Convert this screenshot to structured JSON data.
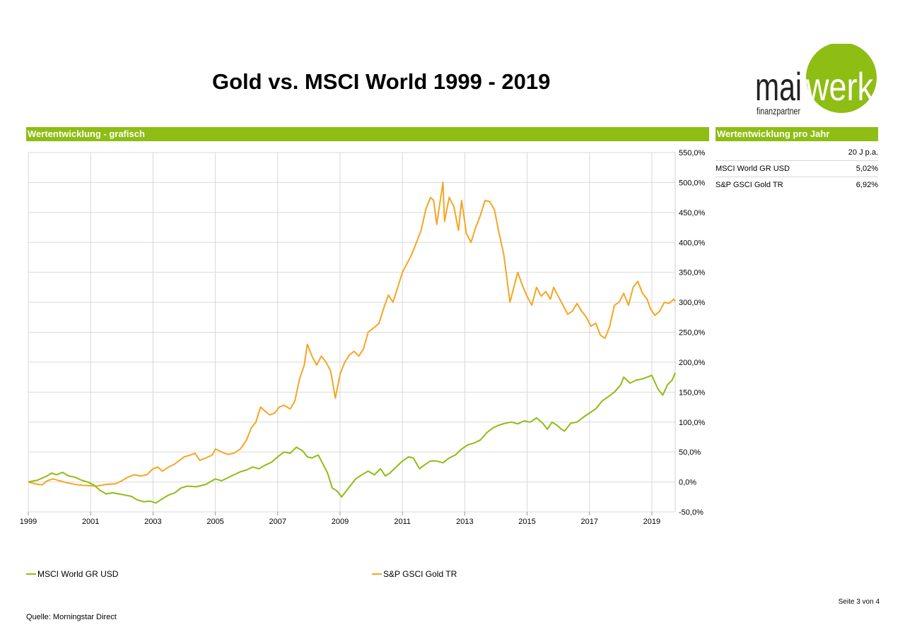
{
  "page": {
    "title": "Gold vs. MSCI World 1999 - 2019",
    "page_number": "Seite 3 von 4",
    "source": "Quelle: Morningstar Direct"
  },
  "logo": {
    "text_left": "mai",
    "text_right": "werk",
    "subtitle": "finanzpartner",
    "color_green": "#8ebd14"
  },
  "colors": {
    "accent_green": "#8ebd14",
    "msci": "#8ebd14",
    "gold": "#f5a623"
  },
  "sections": {
    "chart_header": "Wertentwicklung - grafisch",
    "table_header": "Wertentwicklung pro Jahr"
  },
  "performance_table": {
    "column_header": "20 J p.a.",
    "rows": [
      {
        "name": "MSCI World GR USD",
        "value": "5,02%"
      },
      {
        "name": "S&P GSCI Gold TR",
        "value": "6,92%"
      }
    ]
  },
  "chart_data": {
    "type": "line",
    "title": "",
    "xlabel": "",
    "ylabel": "",
    "x_range": [
      1999.0,
      2019.75
    ],
    "y_range": [
      -50,
      550
    ],
    "y_ticks": [
      550,
      500,
      450,
      400,
      350,
      300,
      250,
      200,
      150,
      100,
      50,
      0,
      -50
    ],
    "y_tick_labels": [
      "550,0%",
      "500,0%",
      "450,0%",
      "400,0%",
      "350,0%",
      "300,0%",
      "250,0%",
      "200,0%",
      "150,0%",
      "100,0%",
      "50,0%",
      "0,0%",
      "-50,0%"
    ],
    "x_ticks": [
      1999,
      2001,
      2003,
      2005,
      2007,
      2009,
      2011,
      2013,
      2015,
      2017,
      2019
    ],
    "x_tick_labels": [
      "1999",
      "2001",
      "2003",
      "2005",
      "2007",
      "2009",
      "2011",
      "2013",
      "2015",
      "2017",
      "2019"
    ],
    "grid": true,
    "legend_position": "bottom",
    "series": [
      {
        "name": "MSCI World GR USD",
        "color": "#8ebd14",
        "points": [
          [
            1999.0,
            0
          ],
          [
            1999.3,
            3
          ],
          [
            1999.6,
            10
          ],
          [
            1999.75,
            15
          ],
          [
            1999.9,
            12
          ],
          [
            2000.1,
            16
          ],
          [
            2000.3,
            10
          ],
          [
            2000.5,
            8
          ],
          [
            2000.7,
            3
          ],
          [
            2000.9,
            0
          ],
          [
            2001.1,
            -5
          ],
          [
            2001.3,
            -14
          ],
          [
            2001.5,
            -20
          ],
          [
            2001.7,
            -18
          ],
          [
            2001.9,
            -20
          ],
          [
            2002.1,
            -22
          ],
          [
            2002.3,
            -24
          ],
          [
            2002.5,
            -30
          ],
          [
            2002.7,
            -33
          ],
          [
            2002.9,
            -32
          ],
          [
            2003.1,
            -35
          ],
          [
            2003.3,
            -28
          ],
          [
            2003.5,
            -22
          ],
          [
            2003.7,
            -18
          ],
          [
            2003.9,
            -10
          ],
          [
            2004.1,
            -7
          ],
          [
            2004.4,
            -8
          ],
          [
            2004.7,
            -4
          ],
          [
            2005.0,
            5
          ],
          [
            2005.2,
            2
          ],
          [
            2005.4,
            7
          ],
          [
            2005.6,
            12
          ],
          [
            2005.8,
            17
          ],
          [
            2006.0,
            20
          ],
          [
            2006.2,
            25
          ],
          [
            2006.4,
            22
          ],
          [
            2006.6,
            28
          ],
          [
            2006.8,
            33
          ],
          [
            2007.0,
            42
          ],
          [
            2007.2,
            50
          ],
          [
            2007.4,
            48
          ],
          [
            2007.6,
            58
          ],
          [
            2007.8,
            52
          ],
          [
            2007.95,
            42
          ],
          [
            2008.1,
            40
          ],
          [
            2008.3,
            45
          ],
          [
            2008.45,
            30
          ],
          [
            2008.6,
            15
          ],
          [
            2008.75,
            -10
          ],
          [
            2008.9,
            -15
          ],
          [
            2009.05,
            -25
          ],
          [
            2009.2,
            -15
          ],
          [
            2009.35,
            -5
          ],
          [
            2009.5,
            5
          ],
          [
            2009.7,
            12
          ],
          [
            2009.9,
            18
          ],
          [
            2010.1,
            12
          ],
          [
            2010.3,
            22
          ],
          [
            2010.45,
            10
          ],
          [
            2010.6,
            15
          ],
          [
            2010.8,
            25
          ],
          [
            2011.0,
            35
          ],
          [
            2011.2,
            42
          ],
          [
            2011.35,
            40
          ],
          [
            2011.55,
            22
          ],
          [
            2011.7,
            28
          ],
          [
            2011.9,
            35
          ],
          [
            2012.1,
            35
          ],
          [
            2012.3,
            32
          ],
          [
            2012.5,
            40
          ],
          [
            2012.7,
            45
          ],
          [
            2012.9,
            55
          ],
          [
            2013.1,
            62
          ],
          [
            2013.3,
            65
          ],
          [
            2013.5,
            70
          ],
          [
            2013.7,
            82
          ],
          [
            2013.9,
            90
          ],
          [
            2014.1,
            95
          ],
          [
            2014.3,
            98
          ],
          [
            2014.5,
            100
          ],
          [
            2014.7,
            97
          ],
          [
            2014.9,
            102
          ],
          [
            2015.1,
            100
          ],
          [
            2015.3,
            107
          ],
          [
            2015.5,
            98
          ],
          [
            2015.65,
            88
          ],
          [
            2015.8,
            100
          ],
          [
            2015.95,
            95
          ],
          [
            2016.1,
            88
          ],
          [
            2016.2,
            85
          ],
          [
            2016.4,
            98
          ],
          [
            2016.6,
            100
          ],
          [
            2016.8,
            108
          ],
          [
            2017.0,
            115
          ],
          [
            2017.2,
            122
          ],
          [
            2017.4,
            135
          ],
          [
            2017.6,
            142
          ],
          [
            2017.8,
            150
          ],
          [
            2018.0,
            162
          ],
          [
            2018.1,
            175
          ],
          [
            2018.3,
            165
          ],
          [
            2018.5,
            170
          ],
          [
            2018.7,
            172
          ],
          [
            2018.9,
            176
          ],
          [
            2019.0,
            178
          ],
          [
            2019.2,
            155
          ],
          [
            2019.35,
            145
          ],
          [
            2019.5,
            162
          ],
          [
            2019.65,
            170
          ],
          [
            2019.75,
            182
          ]
        ]
      },
      {
        "name": "S&P GSCI Gold TR",
        "color": "#f5a623",
        "points": [
          [
            1999.0,
            0
          ],
          [
            1999.2,
            -3
          ],
          [
            1999.45,
            -5
          ],
          [
            1999.6,
            2
          ],
          [
            1999.8,
            5
          ],
          [
            2000.0,
            2
          ],
          [
            2000.3,
            -2
          ],
          [
            2000.6,
            -5
          ],
          [
            2000.9,
            -6
          ],
          [
            2001.2,
            -7
          ],
          [
            2001.5,
            -4
          ],
          [
            2001.8,
            -3
          ],
          [
            2002.0,
            2
          ],
          [
            2002.2,
            8
          ],
          [
            2002.4,
            12
          ],
          [
            2002.6,
            10
          ],
          [
            2002.8,
            12
          ],
          [
            2003.0,
            22
          ],
          [
            2003.15,
            25
          ],
          [
            2003.3,
            18
          ],
          [
            2003.5,
            25
          ],
          [
            2003.7,
            30
          ],
          [
            2003.9,
            38
          ],
          [
            2004.0,
            42
          ],
          [
            2004.2,
            45
          ],
          [
            2004.35,
            48
          ],
          [
            2004.5,
            36
          ],
          [
            2004.7,
            40
          ],
          [
            2004.9,
            45
          ],
          [
            2005.0,
            55
          ],
          [
            2005.2,
            50
          ],
          [
            2005.4,
            46
          ],
          [
            2005.6,
            48
          ],
          [
            2005.8,
            55
          ],
          [
            2006.0,
            70
          ],
          [
            2006.15,
            90
          ],
          [
            2006.3,
            100
          ],
          [
            2006.45,
            125
          ],
          [
            2006.6,
            118
          ],
          [
            2006.75,
            112
          ],
          [
            2006.9,
            115
          ],
          [
            2007.05,
            125
          ],
          [
            2007.2,
            128
          ],
          [
            2007.4,
            122
          ],
          [
            2007.55,
            135
          ],
          [
            2007.7,
            172
          ],
          [
            2007.85,
            195
          ],
          [
            2007.95,
            230
          ],
          [
            2008.1,
            210
          ],
          [
            2008.25,
            195
          ],
          [
            2008.4,
            210
          ],
          [
            2008.55,
            200
          ],
          [
            2008.7,
            185
          ],
          [
            2008.85,
            140
          ],
          [
            2009.0,
            180
          ],
          [
            2009.15,
            200
          ],
          [
            2009.3,
            212
          ],
          [
            2009.45,
            218
          ],
          [
            2009.6,
            210
          ],
          [
            2009.75,
            222
          ],
          [
            2009.9,
            250
          ],
          [
            2010.1,
            258
          ],
          [
            2010.25,
            265
          ],
          [
            2010.4,
            290
          ],
          [
            2010.55,
            312
          ],
          [
            2010.7,
            300
          ],
          [
            2010.85,
            325
          ],
          [
            2011.0,
            350
          ],
          [
            2011.15,
            365
          ],
          [
            2011.3,
            380
          ],
          [
            2011.45,
            400
          ],
          [
            2011.6,
            420
          ],
          [
            2011.75,
            455
          ],
          [
            2011.9,
            475
          ],
          [
            2012.0,
            470
          ],
          [
            2012.1,
            430
          ],
          [
            2012.2,
            465
          ],
          [
            2012.3,
            500
          ],
          [
            2012.35,
            435
          ],
          [
            2012.5,
            475
          ],
          [
            2012.65,
            460
          ],
          [
            2012.8,
            420
          ],
          [
            2012.9,
            470
          ],
          [
            2013.05,
            415
          ],
          [
            2013.2,
            400
          ],
          [
            2013.35,
            425
          ],
          [
            2013.5,
            445
          ],
          [
            2013.65,
            470
          ],
          [
            2013.8,
            468
          ],
          [
            2013.95,
            455
          ],
          [
            2014.1,
            415
          ],
          [
            2014.25,
            380
          ],
          [
            2014.35,
            340
          ],
          [
            2014.45,
            300
          ],
          [
            2014.55,
            320
          ],
          [
            2014.7,
            350
          ],
          [
            2014.85,
            328
          ],
          [
            2015.0,
            310
          ],
          [
            2015.15,
            295
          ],
          [
            2015.3,
            325
          ],
          [
            2015.45,
            310
          ],
          [
            2015.6,
            318
          ],
          [
            2015.75,
            305
          ],
          [
            2015.85,
            325
          ],
          [
            2016.0,
            310
          ],
          [
            2016.15,
            295
          ],
          [
            2016.3,
            280
          ],
          [
            2016.45,
            285
          ],
          [
            2016.6,
            298
          ],
          [
            2016.75,
            285
          ],
          [
            2016.9,
            275
          ],
          [
            2017.05,
            260
          ],
          [
            2017.2,
            265
          ],
          [
            2017.35,
            245
          ],
          [
            2017.5,
            240
          ],
          [
            2017.65,
            260
          ],
          [
            2017.8,
            295
          ],
          [
            2017.95,
            300
          ],
          [
            2018.1,
            315
          ],
          [
            2018.25,
            295
          ],
          [
            2018.4,
            325
          ],
          [
            2018.55,
            335
          ],
          [
            2018.7,
            315
          ],
          [
            2018.85,
            305
          ],
          [
            2018.95,
            290
          ],
          [
            2019.1,
            278
          ],
          [
            2019.25,
            285
          ],
          [
            2019.4,
            300
          ],
          [
            2019.55,
            298
          ],
          [
            2019.7,
            305
          ],
          [
            2019.75,
            302
          ]
        ]
      }
    ]
  }
}
